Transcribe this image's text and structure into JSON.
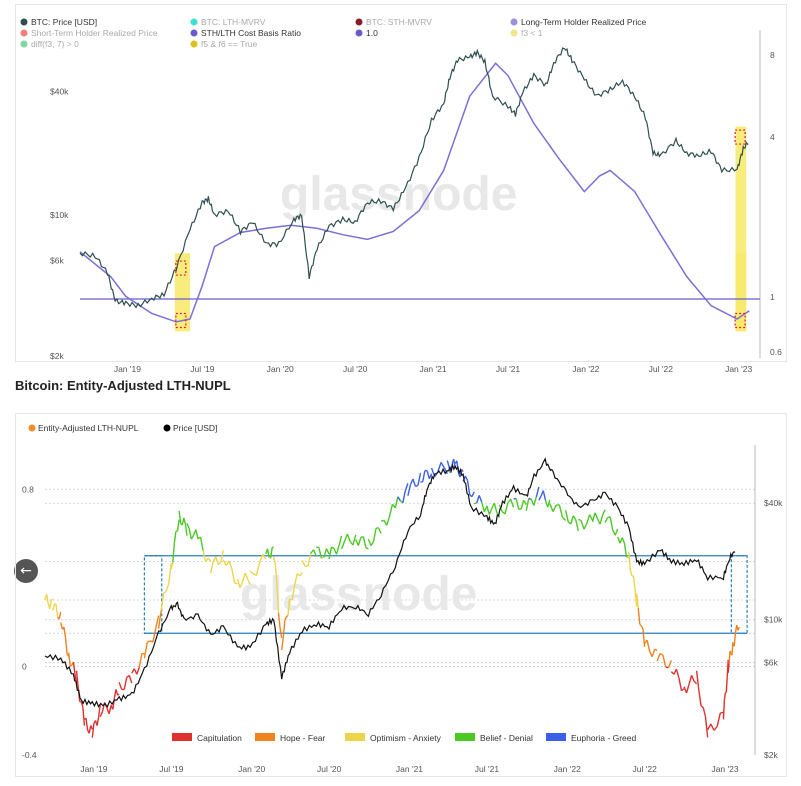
{
  "heading": "Bitcoin: Entity-Adjusted LTH-NUPL",
  "nav_left_icon": "arrow-left-icon",
  "nav_right_icon": "arrow-right-icon",
  "watermark": "glassnode",
  "chart_data": [
    {
      "type": "line",
      "legend": [
        {
          "name": "BTC: Price [USD]",
          "color": "#2f4f4f"
        },
        {
          "name": "BTC: LTH-MVRV",
          "color": "#40e0d0"
        },
        {
          "name": "BTC: STH-MVRV",
          "color": "#8b1a2b"
        },
        {
          "name": "Long-Term Holder Realized Price",
          "color": "#9c8fe0"
        },
        {
          "name": "Short-Term Holder Realized Price",
          "color": "#f08080"
        },
        {
          "name": "STH/LTH Cost Basis Ratio",
          "color": "#6a5acd"
        },
        {
          "name": "1.0",
          "color": "#6a5acd"
        },
        {
          "name": "f3 < 1",
          "color": "#f0e68c"
        },
        {
          "name": "diff(f3, 7) > 0",
          "color": "#7ed6a0"
        },
        {
          "name": "f5 & f6 == True",
          "color": "#e0c020"
        }
      ],
      "x_ticks": [
        "Jan '19",
        "Jul '19",
        "Jan '20",
        "Jul '20",
        "Jan '21",
        "Jul '21",
        "Jan '22",
        "Jul '22",
        "Jan '23"
      ],
      "y_left_ticks": [
        "$40k",
        "$10k",
        "$6k",
        "$2k"
      ],
      "y_right_ticks": [
        "8",
        "4",
        "1",
        "0.6"
      ],
      "y_scale": "log",
      "price": [
        [
          2018.7,
          6500
        ],
        [
          2018.8,
          6300
        ],
        [
          2018.88,
          5200
        ],
        [
          2018.93,
          3800
        ],
        [
          2019.0,
          3700
        ],
        [
          2019.08,
          3600
        ],
        [
          2019.17,
          3900
        ],
        [
          2019.25,
          4100
        ],
        [
          2019.33,
          5500
        ],
        [
          2019.42,
          8500
        ],
        [
          2019.5,
          11500
        ],
        [
          2019.54,
          12000
        ],
        [
          2019.58,
          10000
        ],
        [
          2019.67,
          10500
        ],
        [
          2019.75,
          8300
        ],
        [
          2019.83,
          9200
        ],
        [
          2019.92,
          7200
        ],
        [
          2020.0,
          7200
        ],
        [
          2020.1,
          9500
        ],
        [
          2020.15,
          10000
        ],
        [
          2020.2,
          5000
        ],
        [
          2020.25,
          6800
        ],
        [
          2020.33,
          8800
        ],
        [
          2020.42,
          9500
        ],
        [
          2020.5,
          9200
        ],
        [
          2020.58,
          11500
        ],
        [
          2020.67,
          11700
        ],
        [
          2020.75,
          10700
        ],
        [
          2020.83,
          13500
        ],
        [
          2020.92,
          19000
        ],
        [
          2021.0,
          29000
        ],
        [
          2021.08,
          35000
        ],
        [
          2021.12,
          47000
        ],
        [
          2021.17,
          57000
        ],
        [
          2021.25,
          59000
        ],
        [
          2021.3,
          62000
        ],
        [
          2021.35,
          56000
        ],
        [
          2021.4,
          38000
        ],
        [
          2021.5,
          34000
        ],
        [
          2021.55,
          31000
        ],
        [
          2021.6,
          40000
        ],
        [
          2021.67,
          48000
        ],
        [
          2021.75,
          43000
        ],
        [
          2021.8,
          55000
        ],
        [
          2021.87,
          66000
        ],
        [
          2021.92,
          57000
        ],
        [
          2022.0,
          46000
        ],
        [
          2022.08,
          38000
        ],
        [
          2022.17,
          41000
        ],
        [
          2022.25,
          45000
        ],
        [
          2022.33,
          38000
        ],
        [
          2022.4,
          30000
        ],
        [
          2022.45,
          20000
        ],
        [
          2022.5,
          19500
        ],
        [
          2022.6,
          23000
        ],
        [
          2022.67,
          20000
        ],
        [
          2022.75,
          19500
        ],
        [
          2022.83,
          20500
        ],
        [
          2022.9,
          16500
        ],
        [
          2023.0,
          16600
        ],
        [
          2023.04,
          21000
        ],
        [
          2023.08,
          23000
        ]
      ],
      "lth_realized_price": [
        [
          2018.7,
          6600
        ],
        [
          2018.9,
          5000
        ],
        [
          2019.0,
          4000
        ],
        [
          2019.17,
          3300
        ],
        [
          2019.33,
          3000
        ],
        [
          2019.42,
          3100
        ],
        [
          2019.5,
          4500
        ],
        [
          2019.58,
          7000
        ],
        [
          2019.75,
          8200
        ],
        [
          2019.92,
          8600
        ],
        [
          2020.08,
          8900
        ],
        [
          2020.25,
          8600
        ],
        [
          2020.42,
          8000
        ],
        [
          2020.58,
          7600
        ],
        [
          2020.75,
          8300
        ],
        [
          2020.92,
          10500
        ],
        [
          2021.08,
          16500
        ],
        [
          2021.25,
          38000
        ],
        [
          2021.42,
          55000
        ],
        [
          2021.5,
          48000
        ],
        [
          2021.67,
          28000
        ],
        [
          2021.83,
          19000
        ],
        [
          2022.0,
          13000
        ],
        [
          2022.1,
          15500
        ],
        [
          2022.17,
          16500
        ],
        [
          2022.33,
          13000
        ],
        [
          2022.5,
          8000
        ],
        [
          2022.67,
          5000
        ],
        [
          2022.83,
          3600
        ],
        [
          2023.0,
          3100
        ],
        [
          2023.08,
          3400
        ]
      ],
      "ratio_line": 1.0,
      "highlight_bands": [
        [
          2019.32,
          2019.42
        ],
        [
          2022.99,
          2023.06
        ]
      ]
    },
    {
      "type": "line",
      "legend": [
        {
          "name": "Entity-Adjusted LTH-NUPL",
          "color": "#f28c28"
        },
        {
          "name": "Price [USD]",
          "color": "#000000"
        }
      ],
      "zones": [
        {
          "name": "Capitulation",
          "color": "#e03030"
        },
        {
          "name": "Hope - Fear",
          "color": "#f0831e"
        },
        {
          "name": "Optimism - Anxiety",
          "color": "#ecd54a"
        },
        {
          "name": "Belief - Denial",
          "color": "#4cc825"
        },
        {
          "name": "Euphoria - Greed",
          "color": "#3a60e8"
        }
      ],
      "x_ticks": [
        "Jan '19",
        "Jul '19",
        "Jan '20",
        "Jul '20",
        "Jan '21",
        "Jul '21",
        "Jan '22",
        "Jul '22",
        "Jan '23"
      ],
      "y_left_ticks": [
        "0.8",
        "0",
        "-0.4"
      ],
      "y_right_ticks": [
        "$40k",
        "$10k",
        "$6k",
        "$2k"
      ],
      "nupl": [
        [
          2018.7,
          0.3
        ],
        [
          2018.75,
          0.28
        ],
        [
          2018.8,
          0.22
        ],
        [
          2018.85,
          0.05
        ],
        [
          2018.9,
          -0.05
        ],
        [
          2018.95,
          -0.25
        ],
        [
          2019.0,
          -0.3
        ],
        [
          2019.05,
          -0.2
        ],
        [
          2019.12,
          -0.18
        ],
        [
          2019.17,
          -0.1
        ],
        [
          2019.25,
          -0.05
        ],
        [
          2019.33,
          0.05
        ],
        [
          2019.42,
          0.2
        ],
        [
          2019.5,
          0.45
        ],
        [
          2019.55,
          0.68
        ],
        [
          2019.6,
          0.62
        ],
        [
          2019.67,
          0.58
        ],
        [
          2019.75,
          0.45
        ],
        [
          2019.83,
          0.5
        ],
        [
          2019.92,
          0.38
        ],
        [
          2020.0,
          0.4
        ],
        [
          2020.1,
          0.5
        ],
        [
          2020.15,
          0.52
        ],
        [
          2020.2,
          0.1
        ],
        [
          2020.25,
          0.3
        ],
        [
          2020.33,
          0.45
        ],
        [
          2020.42,
          0.52
        ],
        [
          2020.5,
          0.5
        ],
        [
          2020.58,
          0.56
        ],
        [
          2020.67,
          0.58
        ],
        [
          2020.75,
          0.55
        ],
        [
          2020.83,
          0.63
        ],
        [
          2020.92,
          0.72
        ],
        [
          2021.0,
          0.8
        ],
        [
          2021.08,
          0.85
        ],
        [
          2021.15,
          0.88
        ],
        [
          2021.25,
          0.9
        ],
        [
          2021.3,
          0.91
        ],
        [
          2021.35,
          0.86
        ],
        [
          2021.42,
          0.76
        ],
        [
          2021.5,
          0.72
        ],
        [
          2021.58,
          0.7
        ],
        [
          2021.67,
          0.74
        ],
        [
          2021.75,
          0.72
        ],
        [
          2021.83,
          0.78
        ],
        [
          2021.9,
          0.74
        ],
        [
          2022.0,
          0.68
        ],
        [
          2022.08,
          0.64
        ],
        [
          2022.17,
          0.66
        ],
        [
          2022.25,
          0.68
        ],
        [
          2022.33,
          0.6
        ],
        [
          2022.4,
          0.5
        ],
        [
          2022.45,
          0.3
        ],
        [
          2022.5,
          0.1
        ],
        [
          2022.58,
          0.05
        ],
        [
          2022.67,
          0.0
        ],
        [
          2022.75,
          -0.1
        ],
        [
          2022.83,
          -0.05
        ],
        [
          2022.9,
          -0.3
        ],
        [
          2023.0,
          -0.22
        ],
        [
          2023.03,
          0.0
        ],
        [
          2023.06,
          0.1
        ],
        [
          2023.1,
          0.2
        ]
      ],
      "price": [
        [
          2018.7,
          6500
        ],
        [
          2018.8,
          6300
        ],
        [
          2018.88,
          5200
        ],
        [
          2018.93,
          3800
        ],
        [
          2019.0,
          3700
        ],
        [
          2019.08,
          3600
        ],
        [
          2019.17,
          3900
        ],
        [
          2019.25,
          4100
        ],
        [
          2019.33,
          5500
        ],
        [
          2019.42,
          8500
        ],
        [
          2019.5,
          11500
        ],
        [
          2019.54,
          12000
        ],
        [
          2019.58,
          10000
        ],
        [
          2019.67,
          10500
        ],
        [
          2019.75,
          8300
        ],
        [
          2019.83,
          9200
        ],
        [
          2019.92,
          7200
        ],
        [
          2020.0,
          7200
        ],
        [
          2020.1,
          9500
        ],
        [
          2020.15,
          10000
        ],
        [
          2020.2,
          5000
        ],
        [
          2020.25,
          6800
        ],
        [
          2020.33,
          8800
        ],
        [
          2020.42,
          9500
        ],
        [
          2020.5,
          9200
        ],
        [
          2020.58,
          11500
        ],
        [
          2020.67,
          11700
        ],
        [
          2020.75,
          10700
        ],
        [
          2020.83,
          13500
        ],
        [
          2020.92,
          19000
        ],
        [
          2021.0,
          29000
        ],
        [
          2021.08,
          35000
        ],
        [
          2021.12,
          47000
        ],
        [
          2021.17,
          57000
        ],
        [
          2021.25,
          59000
        ],
        [
          2021.3,
          62000
        ],
        [
          2021.35,
          56000
        ],
        [
          2021.4,
          38000
        ],
        [
          2021.5,
          34000
        ],
        [
          2021.55,
          31000
        ],
        [
          2021.6,
          40000
        ],
        [
          2021.67,
          48000
        ],
        [
          2021.75,
          43000
        ],
        [
          2021.8,
          55000
        ],
        [
          2021.87,
          66000
        ],
        [
          2021.92,
          57000
        ],
        [
          2022.0,
          46000
        ],
        [
          2022.08,
          38000
        ],
        [
          2022.17,
          41000
        ],
        [
          2022.25,
          45000
        ],
        [
          2022.33,
          38000
        ],
        [
          2022.4,
          30000
        ],
        [
          2022.45,
          20000
        ],
        [
          2022.5,
          19500
        ],
        [
          2022.6,
          23000
        ],
        [
          2022.67,
          20000
        ],
        [
          2022.75,
          19500
        ],
        [
          2022.83,
          20500
        ],
        [
          2022.9,
          16500
        ],
        [
          2023.0,
          16600
        ],
        [
          2023.04,
          21000
        ],
        [
          2023.08,
          23000
        ]
      ],
      "band_levels": [
        0.15,
        0.5
      ],
      "band_boxes": [
        [
          2019.33,
          2019.44
        ],
        [
          2023.05,
          2023.15
        ]
      ]
    }
  ]
}
